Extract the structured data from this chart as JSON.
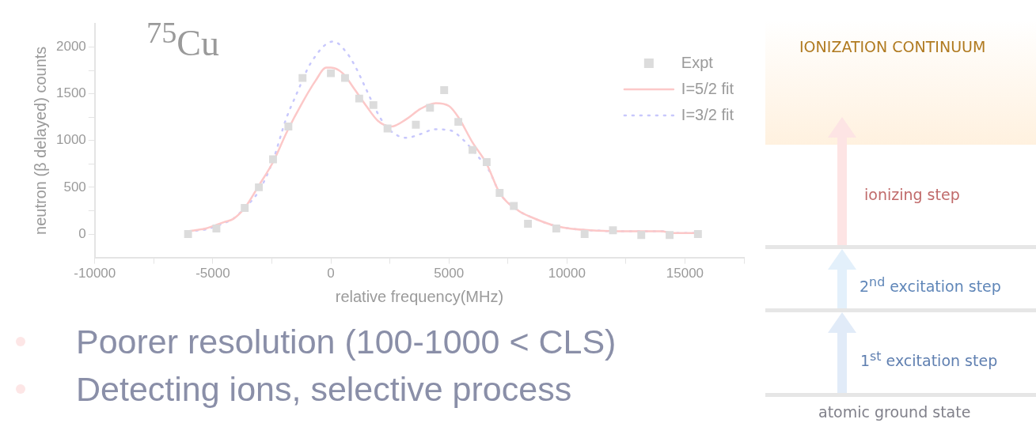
{
  "chart_data": [
    {
      "type": "scatter",
      "xlabel": "relative frequency(MHz)",
      "ylabel": "neutron (β delayed) counts",
      "annotations": [
        "$^{75}$Cu",
        "Poorer resolution (100-1000 < CLS)",
        "Detecting ions, selective process"
      ],
      "xlim": [
        -10000,
        17500
      ],
      "xticks": [
        -10000,
        {
          "value": -7500,
          "label": null
        },
        -5000,
        {
          "value": -2500,
          "label": null
        },
        0,
        {
          "value": 2500,
          "label": null
        },
        5000,
        {
          "value": 7500,
          "label": null
        },
        10000,
        {
          "value": 12500,
          "label": null
        },
        15000,
        {
          "value": 17500,
          "label": null
        }
      ],
      "ylim": [
        -250,
        2250
      ],
      "yticks": [
        0,
        {
          "value": 250,
          "label": null
        },
        500,
        {
          "value": 750,
          "label": null
        },
        1000,
        {
          "value": 1250,
          "label": null
        },
        1500,
        {
          "value": 1750,
          "label": null
        },
        2000
      ],
      "legend": "top right",
      "grid": false,
      "series": [
        {
          "name": "Expt",
          "type": "scatter",
          "marker": "square",
          "color": "#dcdcdc",
          "x": [
            -6050,
            -4850,
            -3650,
            -3050,
            -2450,
            -1800,
            -1200,
            0,
            600,
            1200,
            1800,
            2400,
            3600,
            4200,
            4800,
            5400,
            6000,
            6600,
            7150,
            7750,
            8350,
            9550,
            10750,
            11950,
            13150,
            14350,
            15550
          ],
          "values": [
            0,
            60,
            280,
            500,
            800,
            1150,
            1670,
            1720,
            1670,
            1450,
            1380,
            1130,
            1170,
            1350,
            1540,
            1200,
            900,
            770,
            440,
            300,
            110,
            60,
            0,
            40,
            -10,
            -10,
            0
          ]
        },
        {
          "name": "I=5/2 fit",
          "type": "line",
          "marker": "none",
          "line_style": "solid",
          "color": "#fcc8c8",
          "x": [
            -6050,
            -5300,
            -4500,
            -4150,
            -3650,
            -3050,
            -2450,
            -1850,
            -1200,
            -650,
            -200,
            0,
            500,
            1000,
            1500,
            2000,
            2550,
            3200,
            3800,
            4450,
            5000,
            5400,
            6000,
            6600,
            7150,
            7950,
            8500,
            9550,
            11000,
            13000,
            14000,
            14500,
            15550
          ],
          "values": [
            30,
            60,
            130,
            160,
            280,
            520,
            770,
            1100,
            1410,
            1640,
            1780,
            1780,
            1720,
            1550,
            1370,
            1210,
            1150,
            1230,
            1340,
            1400,
            1370,
            1250,
            980,
            750,
            440,
            250,
            180,
            85,
            40,
            30,
            30,
            10,
            10
          ]
        },
        {
          "name": "I=3/2 fit",
          "type": "line",
          "marker": "none",
          "line_style": "dotted",
          "color": "#c8c8fc",
          "x": [
            -6050,
            -5300,
            -4500,
            -4150,
            -3650,
            -3050,
            -2450,
            -1900,
            -1450,
            -850,
            100,
            700,
            1100,
            1400,
            2100,
            2550,
            3200,
            3800,
            4400,
            5050,
            5600,
            6200,
            6700,
            7150,
            7950,
            8500,
            9550,
            11000,
            13000,
            14000,
            14500,
            15550
          ],
          "values": [
            30,
            50,
            120,
            160,
            280,
            460,
            790,
            1230,
            1500,
            1830,
            2060,
            1930,
            1760,
            1600,
            1240,
            1100,
            1030,
            1070,
            1120,
            1110,
            1010,
            840,
            680,
            440,
            250,
            180,
            85,
            40,
            30,
            30,
            10,
            10
          ]
        }
      ]
    },
    {
      "type": "other",
      "annotations": [
        "IONIZATION   CONTINUUM",
        "ionizing  step",
        "2$^{nd}$  excitation step",
        "1$^{st}$  excitation step",
        "atomic ground state"
      ]
    }
  ]
}
